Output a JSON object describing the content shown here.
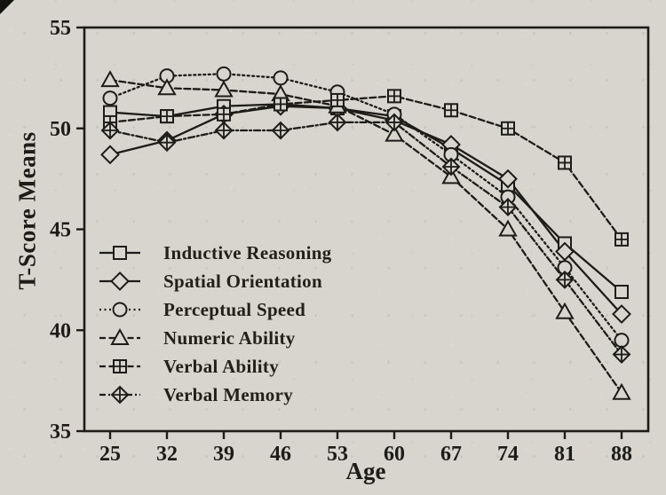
{
  "figure": {
    "background_color": "#d8d5cf",
    "ink_color": "#1d1c19",
    "y_axis_title": "T-Score Means",
    "x_axis_title": "Age"
  },
  "chart_data": {
    "type": "line",
    "title": "",
    "xlabel": "Age",
    "ylabel": "T-Score Means",
    "x": [
      25,
      32,
      39,
      46,
      53,
      60,
      67,
      74,
      81,
      88
    ],
    "ylim": [
      35,
      55
    ],
    "y_ticks": [
      55,
      50,
      45,
      40,
      35
    ],
    "grid": false,
    "legend_position": "inside-lower-left",
    "series": [
      {
        "name": "Inductive Reasoning",
        "marker": "square",
        "line": "solid",
        "values": [
          50.8,
          50.6,
          51.1,
          51.2,
          51.0,
          50.6,
          49.0,
          47.2,
          44.3,
          41.9
        ]
      },
      {
        "name": "Spatial Orientation",
        "marker": "diamond",
        "line": "solid",
        "values": [
          48.7,
          49.4,
          50.7,
          51.1,
          51.0,
          50.4,
          49.2,
          47.5,
          43.9,
          40.8
        ]
      },
      {
        "name": "Perceptual Speed",
        "marker": "circle",
        "line": "dotted",
        "values": [
          51.5,
          52.6,
          52.7,
          52.5,
          51.8,
          50.7,
          48.7,
          46.6,
          43.1,
          39.5
        ]
      },
      {
        "name": "Numeric Ability",
        "marker": "triangle",
        "line": "dashed",
        "values": [
          52.4,
          52.0,
          51.9,
          51.7,
          51.1,
          49.7,
          47.6,
          45.0,
          40.9,
          36.9
        ]
      },
      {
        "name": "Verbal Ability",
        "marker": "square-cross",
        "line": "dashed",
        "values": [
          50.3,
          50.6,
          50.7,
          51.2,
          51.4,
          51.6,
          50.9,
          50.0,
          48.3,
          44.5
        ]
      },
      {
        "name": "Verbal Memory",
        "marker": "diamond-cross",
        "line": "dash-dot",
        "values": [
          49.9,
          49.3,
          49.9,
          49.9,
          50.3,
          50.3,
          48.1,
          46.1,
          42.5,
          38.8
        ]
      }
    ]
  }
}
